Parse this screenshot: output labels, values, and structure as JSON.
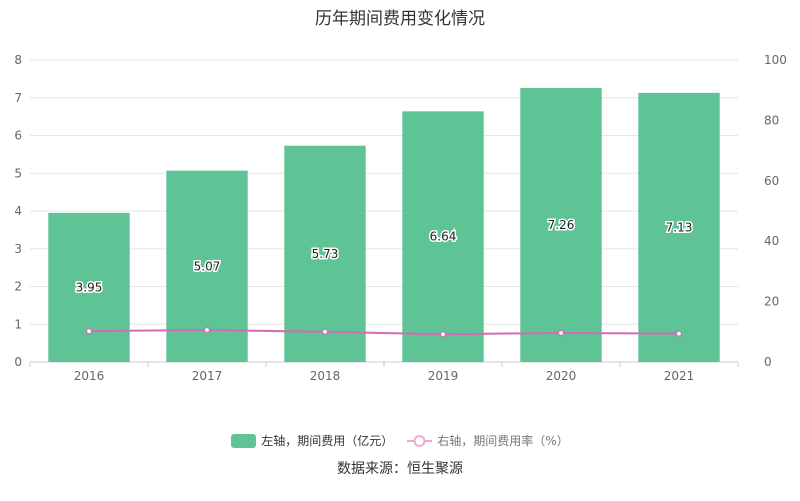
{
  "title": "历年期间费用变化情况",
  "source": "数据来源：恒生聚源",
  "legend": {
    "bar_label": "左轴，期间费用（亿元）",
    "line_label": "右轴，期间费用率（%）"
  },
  "colors": {
    "bar": "#5fc495",
    "line": "#d46bb3",
    "grid": "#e6e6e6",
    "axis_text": "#666666"
  },
  "chart_data": {
    "type": "bar",
    "categories": [
      "2016",
      "2017",
      "2018",
      "2019",
      "2020",
      "2021"
    ],
    "series": [
      {
        "name": "左轴，期间费用（亿元）",
        "type": "bar",
        "axis": "left",
        "values": [
          3.95,
          5.07,
          5.73,
          6.64,
          7.26,
          7.13
        ]
      },
      {
        "name": "右轴，期间费用率（%）",
        "type": "line",
        "axis": "right",
        "values": [
          10.2,
          10.6,
          10.0,
          9.2,
          9.6,
          9.4
        ]
      }
    ],
    "left_axis": {
      "min": 0,
      "max": 8,
      "ticks": [
        0,
        1,
        2,
        3,
        4,
        5,
        6,
        7,
        8
      ]
    },
    "right_axis": {
      "min": 0,
      "max": 100,
      "ticks": [
        0,
        20,
        40,
        60,
        80,
        100
      ]
    },
    "data_labels": [
      "3.95",
      "5.07",
      "5.73",
      "6.64",
      "7.26",
      "7.13"
    ]
  }
}
